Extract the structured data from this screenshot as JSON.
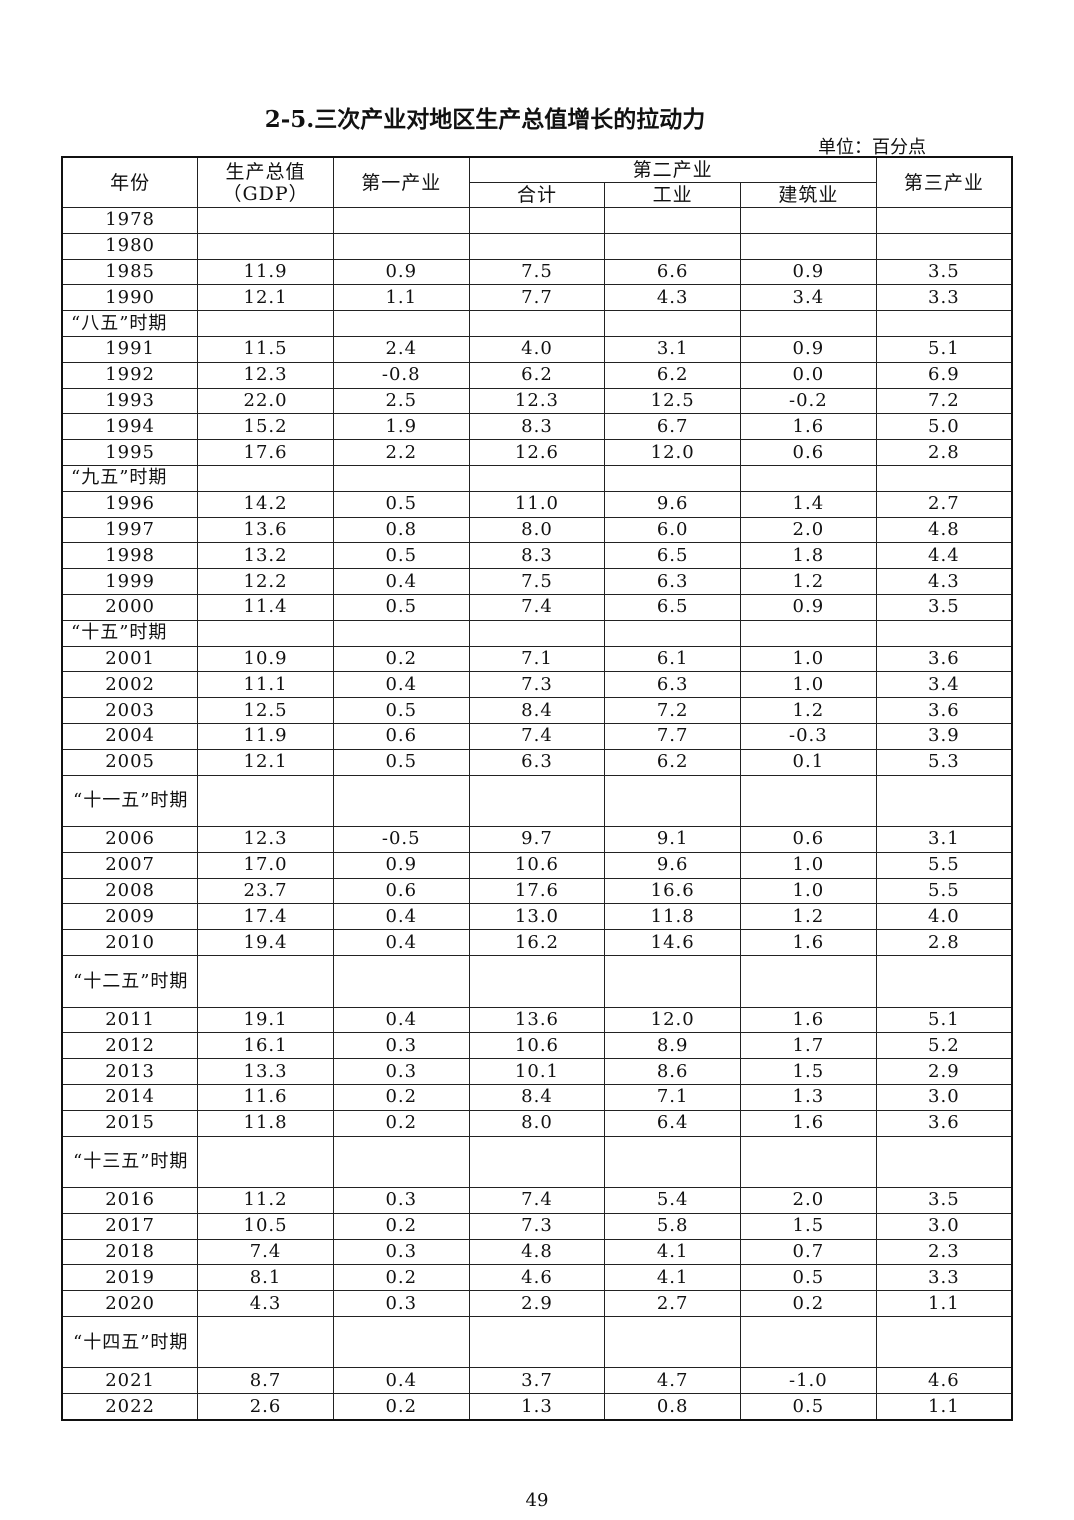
{
  "title": "2-5.三次产业对地区生产总值增长的拉动力",
  "unit": "单位：百分点",
  "headers": {
    "year": "年份",
    "gdp": "生产总值",
    "gdp_sub": "（GDP）",
    "primary": "第一产业",
    "secondary": "第二产业",
    "secondary_total": "合计",
    "industry": "工业",
    "construction": "建筑业",
    "tertiary": "第三产业"
  },
  "rows": [
    {
      "label": "1978",
      "values": [
        "",
        "",
        "",
        "",
        "",
        ""
      ]
    },
    {
      "label": "1980",
      "values": [
        "",
        "",
        "",
        "",
        "",
        ""
      ]
    },
    {
      "label": "1985",
      "values": [
        "11.9",
        "0.9",
        "7.5",
        "6.6",
        "0.9",
        "3.5"
      ]
    },
    {
      "label": "1990",
      "values": [
        "12.1",
        "1.1",
        "7.7",
        "4.3",
        "3.4",
        "3.3"
      ]
    },
    {
      "label": "“八五”时期",
      "period": true,
      "values": [
        "",
        "",
        "",
        "",
        "",
        ""
      ]
    },
    {
      "label": "1991",
      "values": [
        "11.5",
        "2.4",
        "4.0",
        "3.1",
        "0.9",
        "5.1"
      ]
    },
    {
      "label": "1992",
      "values": [
        "12.3",
        "-0.8",
        "6.2",
        "6.2",
        "0.0",
        "6.9"
      ]
    },
    {
      "label": "1993",
      "values": [
        "22.0",
        "2.5",
        "12.3",
        "12.5",
        "-0.2",
        "7.2"
      ]
    },
    {
      "label": "1994",
      "values": [
        "15.2",
        "1.9",
        "8.3",
        "6.7",
        "1.6",
        "5.0"
      ]
    },
    {
      "label": "1995",
      "values": [
        "17.6",
        "2.2",
        "12.6",
        "12.0",
        "0.6",
        "2.8"
      ]
    },
    {
      "label": "“九五”时期",
      "period": true,
      "values": [
        "",
        "",
        "",
        "",
        "",
        ""
      ]
    },
    {
      "label": "1996",
      "values": [
        "14.2",
        "0.5",
        "11.0",
        "9.6",
        "1.4",
        "2.7"
      ]
    },
    {
      "label": "1997",
      "values": [
        "13.6",
        "0.8",
        "8.0",
        "6.0",
        "2.0",
        "4.8"
      ]
    },
    {
      "label": "1998",
      "values": [
        "13.2",
        "0.5",
        "8.3",
        "6.5",
        "1.8",
        "4.4"
      ]
    },
    {
      "label": "1999",
      "values": [
        "12.2",
        "0.4",
        "7.5",
        "6.3",
        "1.2",
        "4.3"
      ]
    },
    {
      "label": "2000",
      "values": [
        "11.4",
        "0.5",
        "7.4",
        "6.5",
        "0.9",
        "3.5"
      ]
    },
    {
      "label": "“十五”时期",
      "period": true,
      "values": [
        "",
        "",
        "",
        "",
        "",
        ""
      ]
    },
    {
      "label": "2001",
      "values": [
        "10.9",
        "0.2",
        "7.1",
        "6.1",
        "1.0",
        "3.6"
      ]
    },
    {
      "label": "2002",
      "values": [
        "11.1",
        "0.4",
        "7.3",
        "6.3",
        "1.0",
        "3.4"
      ]
    },
    {
      "label": "2003",
      "values": [
        "12.5",
        "0.5",
        "8.4",
        "7.2",
        "1.2",
        "3.6"
      ]
    },
    {
      "label": "2004",
      "values": [
        "11.9",
        "0.6",
        "7.4",
        "7.7",
        "-0.3",
        "3.9"
      ]
    },
    {
      "label": "2005",
      "values": [
        "12.1",
        "0.5",
        "6.3",
        "6.2",
        "0.1",
        "5.3"
      ]
    },
    {
      "label": "“十一五”时期",
      "period": true,
      "double": true,
      "values": [
        "",
        "",
        "",
        "",
        "",
        ""
      ]
    },
    {
      "label": "2006",
      "values": [
        "12.3",
        "-0.5",
        "9.7",
        "9.1",
        "0.6",
        "3.1"
      ]
    },
    {
      "label": "2007",
      "values": [
        "17.0",
        "0.9",
        "10.6",
        "9.6",
        "1.0",
        "5.5"
      ]
    },
    {
      "label": "2008",
      "values": [
        "23.7",
        "0.6",
        "17.6",
        "16.6",
        "1.0",
        "5.5"
      ]
    },
    {
      "label": "2009",
      "values": [
        "17.4",
        "0.4",
        "13.0",
        "11.8",
        "1.2",
        "4.0"
      ]
    },
    {
      "label": "2010",
      "values": [
        "19.4",
        "0.4",
        "16.2",
        "14.6",
        "1.6",
        "2.8"
      ]
    },
    {
      "label": "“十二五”时期",
      "period": true,
      "double": true,
      "values": [
        "",
        "",
        "",
        "",
        "",
        ""
      ]
    },
    {
      "label": "2011",
      "values": [
        "19.1",
        "0.4",
        "13.6",
        "12.0",
        "1.6",
        "5.1"
      ]
    },
    {
      "label": "2012",
      "values": [
        "16.1",
        "0.3",
        "10.6",
        "8.9",
        "1.7",
        "5.2"
      ]
    },
    {
      "label": "2013",
      "values": [
        "13.3",
        "0.3",
        "10.1",
        "8.6",
        "1.5",
        "2.9"
      ]
    },
    {
      "label": "2014",
      "values": [
        "11.6",
        "0.2",
        "8.4",
        "7.1",
        "1.3",
        "3.0"
      ]
    },
    {
      "label": "2015",
      "values": [
        "11.8",
        "0.2",
        "8.0",
        "6.4",
        "1.6",
        "3.6"
      ]
    },
    {
      "label": "“十三五”时期",
      "period": true,
      "double": true,
      "values": [
        "",
        "",
        "",
        "",
        "",
        ""
      ]
    },
    {
      "label": "2016",
      "values": [
        "11.2",
        "0.3",
        "7.4",
        "5.4",
        "2.0",
        "3.5"
      ]
    },
    {
      "label": "2017",
      "values": [
        "10.5",
        "0.2",
        "7.3",
        "5.8",
        "1.5",
        "3.0"
      ]
    },
    {
      "label": "2018",
      "values": [
        "7.4",
        "0.3",
        "4.8",
        "4.1",
        "0.7",
        "2.3"
      ]
    },
    {
      "label": "2019",
      "values": [
        "8.1",
        "0.2",
        "4.6",
        "4.1",
        "0.5",
        "3.3"
      ]
    },
    {
      "label": "2020",
      "values": [
        "4.3",
        "0.3",
        "2.9",
        "2.7",
        "0.2",
        "1.1"
      ]
    },
    {
      "label": "“十四五”时期",
      "period": true,
      "double": true,
      "values": [
        "",
        "",
        "",
        "",
        "",
        ""
      ]
    },
    {
      "label": "2021",
      "values": [
        "8.7",
        "0.4",
        "3.7",
        "4.7",
        "-1.0",
        "4.6"
      ]
    },
    {
      "label": "2022",
      "values": [
        "2.6",
        "0.2",
        "1.3",
        "0.8",
        "0.5",
        "1.1"
      ]
    }
  ],
  "page_number": "49"
}
